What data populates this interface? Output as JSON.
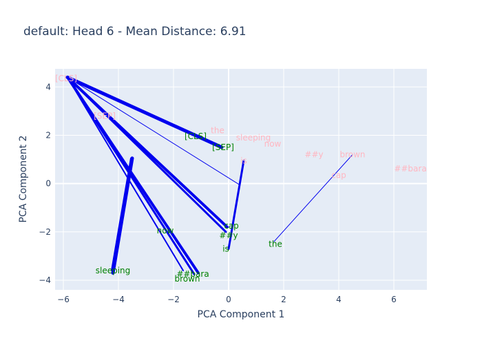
{
  "chart_data": {
    "type": "scatter",
    "title": "default: Head 6 - Mean Distance: 6.91",
    "xlabel": "PCA Component 1",
    "ylabel": "PCA Component 2",
    "xlim": [
      -6.3,
      7.2
    ],
    "ylim": [
      -4.4,
      4.75
    ],
    "xticks": [
      -6,
      -4,
      -2,
      0,
      2,
      4,
      6
    ],
    "yticks": [
      -4,
      -2,
      0,
      2,
      4
    ],
    "grid": true,
    "legend": "none",
    "colors": {
      "plot_bg": "#e5ecf6",
      "grid": "#ffffff",
      "edge": "#0000ee",
      "series_a": "#ffb6c1",
      "series_b": "#008000",
      "title": "#2a3f5f"
    },
    "series": [
      {
        "role": "series_a",
        "points": [
          {
            "label": "[CLS]",
            "x": -5.9,
            "y": 4.35
          },
          {
            "label": "[SEP]",
            "x": -4.5,
            "y": 2.8
          },
          {
            "label": "the",
            "x": -0.4,
            "y": 2.2
          },
          {
            "label": "sleeping",
            "x": 0.9,
            "y": 1.9
          },
          {
            "label": "now",
            "x": 1.6,
            "y": 1.65
          },
          {
            "label": "is",
            "x": 0.55,
            "y": 0.95
          },
          {
            "label": "##y",
            "x": 3.1,
            "y": 1.2
          },
          {
            "label": "brown",
            "x": 4.5,
            "y": 1.2
          },
          {
            "label": "cap",
            "x": 4.0,
            "y": 0.35
          },
          {
            "label": "##bara",
            "x": 6.6,
            "y": 0.62
          }
        ]
      },
      {
        "role": "series_b",
        "points": [
          {
            "label": "[CLS]",
            "x": -1.2,
            "y": 1.95
          },
          {
            "label": "[SEP]",
            "x": -0.2,
            "y": 1.5
          },
          {
            "label": "cap",
            "x": 0.1,
            "y": -1.75
          },
          {
            "label": "now",
            "x": -2.3,
            "y": -1.95
          },
          {
            "label": "##y",
            "x": 0.0,
            "y": -2.15
          },
          {
            "label": "is",
            "x": -0.1,
            "y": -2.7
          },
          {
            "label": "the",
            "x": 1.7,
            "y": -2.5
          },
          {
            "label": "sleeping",
            "x": -4.2,
            "y": -3.6
          },
          {
            "label": "##bara",
            "x": -1.3,
            "y": -3.75
          },
          {
            "label": "brown",
            "x": -1.5,
            "y": -3.95
          }
        ]
      }
    ],
    "edges": [
      {
        "x1": -5.85,
        "y1": 4.4,
        "x2": -0.25,
        "y2": 1.5,
        "w": 5
      },
      {
        "x1": -5.85,
        "y1": 4.4,
        "x2": -0.3,
        "y2": 1.55,
        "w": 3
      },
      {
        "x1": -5.85,
        "y1": 4.4,
        "x2": -0.35,
        "y2": 1.6,
        "w": 2
      },
      {
        "x1": -5.85,
        "y1": 4.4,
        "x2": 0.4,
        "y2": -0.05,
        "w": 1
      },
      {
        "x1": -5.85,
        "y1": 4.4,
        "x2": -0.05,
        "y2": -1.8,
        "w": 4
      },
      {
        "x1": -5.85,
        "y1": 4.4,
        "x2": -0.1,
        "y2": -2.0,
        "w": 3
      },
      {
        "x1": -5.85,
        "y1": 4.4,
        "x2": -1.65,
        "y2": -3.6,
        "w": 2
      },
      {
        "x1": -5.85,
        "y1": 4.4,
        "x2": -1.1,
        "y2": -3.7,
        "w": 4
      },
      {
        "x1": -5.85,
        "y1": 4.4,
        "x2": -1.25,
        "y2": -3.75,
        "w": 3
      },
      {
        "x1": -3.5,
        "y1": 1.05,
        "x2": -4.2,
        "y2": -3.7,
        "w": 5
      },
      {
        "x1": -3.55,
        "y1": 1.05,
        "x2": -4.25,
        "y2": -3.6,
        "w": 2
      },
      {
        "x1": 0.55,
        "y1": 0.95,
        "x2": 0.0,
        "y2": -2.7,
        "w": 3
      },
      {
        "x1": 4.5,
        "y1": 1.2,
        "x2": 1.65,
        "y2": -2.4,
        "w": 1
      }
    ]
  }
}
